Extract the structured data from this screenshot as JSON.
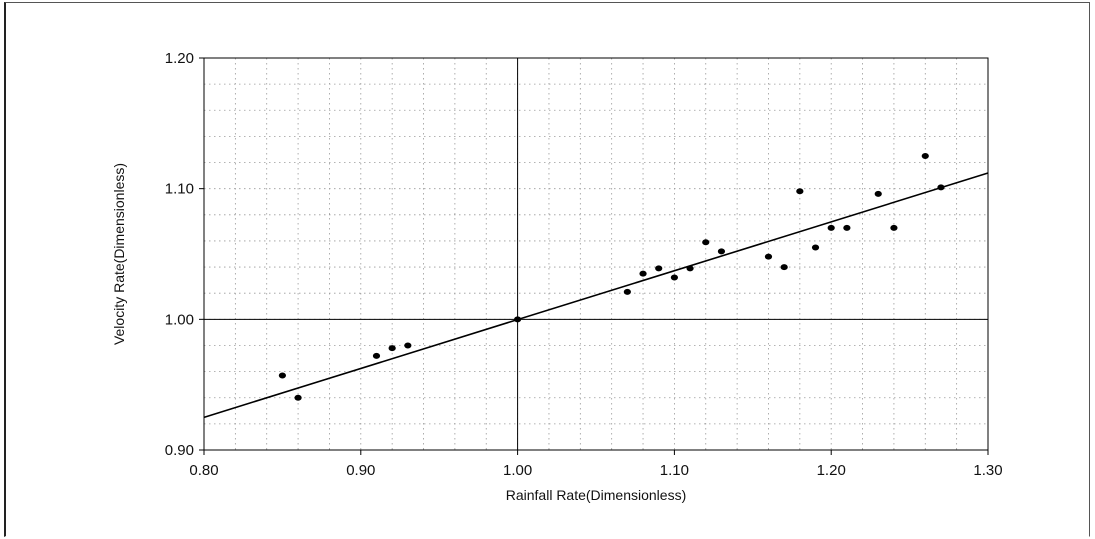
{
  "chart_data": {
    "type": "scatter",
    "title": "",
    "xlabel": "Rainfall Rate(Dimensionless)",
    "ylabel": "Velocity Rate(Dimensionless)",
    "xlim": [
      0.8,
      1.3
    ],
    "ylim": [
      0.9,
      1.2
    ],
    "x_ticks": [
      "0.80",
      "0.90",
      "1.00",
      "1.10",
      "1.20",
      "1.30"
    ],
    "y_ticks": [
      "0.90",
      "1.00",
      "1.10",
      "1.20"
    ],
    "x_minor_step": 0.02,
    "y_minor_step": 0.02,
    "grid": true,
    "reference_lines": {
      "x": 1.0,
      "y": 1.0
    },
    "points": [
      [
        0.85,
        0.957
      ],
      [
        0.86,
        0.94
      ],
      [
        0.91,
        0.972
      ],
      [
        0.92,
        0.978
      ],
      [
        0.93,
        0.98
      ],
      [
        1.0,
        1.0
      ],
      [
        1.07,
        1.021
      ],
      [
        1.08,
        1.035
      ],
      [
        1.09,
        1.039
      ],
      [
        1.1,
        1.032
      ],
      [
        1.11,
        1.039
      ],
      [
        1.12,
        1.059
      ],
      [
        1.13,
        1.052
      ],
      [
        1.16,
        1.048
      ],
      [
        1.17,
        1.04
      ],
      [
        1.18,
        1.098
      ],
      [
        1.19,
        1.055
      ],
      [
        1.2,
        1.07
      ],
      [
        1.21,
        1.07
      ],
      [
        1.23,
        1.096
      ],
      [
        1.24,
        1.07
      ],
      [
        1.26,
        1.125
      ],
      [
        1.27,
        1.101
      ]
    ],
    "trend_line": {
      "x": [
        0.8,
        1.3
      ],
      "y": [
        0.925,
        1.112
      ]
    },
    "colors": {
      "marker": "#000000",
      "line": "#000000",
      "grid": "#9a9a9a"
    }
  }
}
